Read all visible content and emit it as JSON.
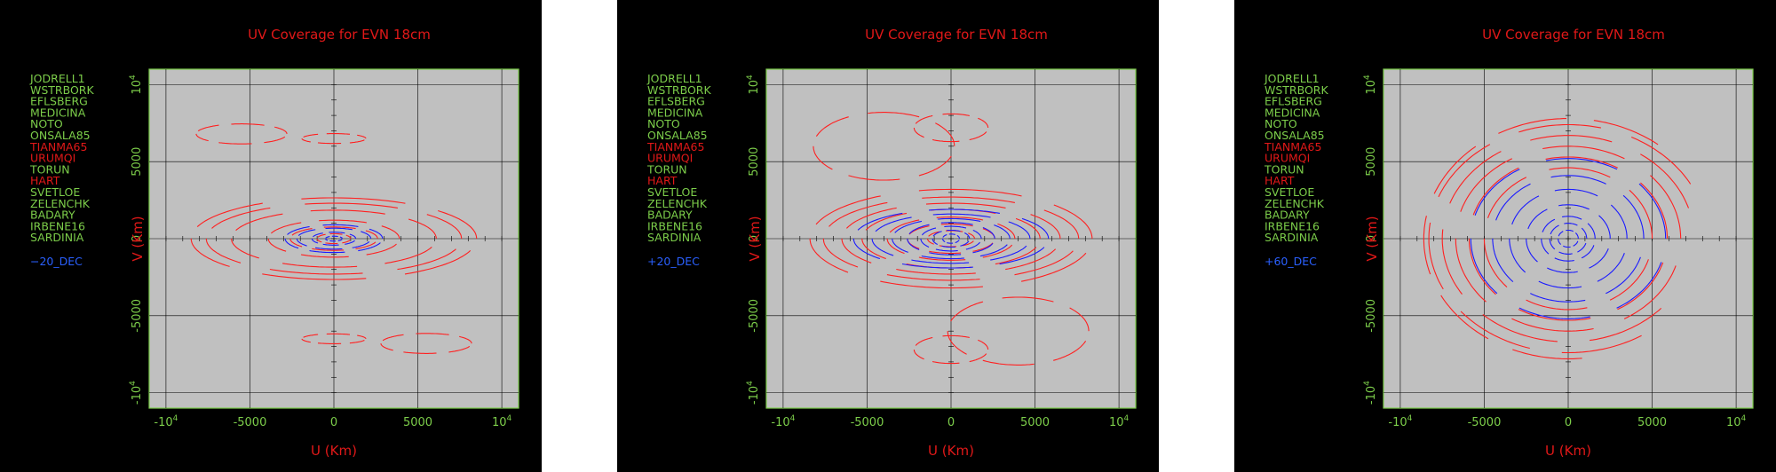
{
  "colors": {
    "background": "#000000",
    "plot_bg": "#c0c0c0",
    "frame": "#7ccd4a",
    "title": "#e01818",
    "axis_label": "#e01818",
    "tick_label": "#7ccd4a",
    "station_green": "#7ccd4a",
    "station_red": "#e01818",
    "series_red": "#ff2020",
    "series_blue": "#1a1aff",
    "dec_label": "#2a60ff"
  },
  "panels": [
    {
      "title": "UV Coverage for EVN 18cm",
      "dec_label": "−20_DEC",
      "xlabel": "U (Km)",
      "ylabel": "V (Km)",
      "stations": [
        {
          "name": "JODRELL1",
          "color": "green"
        },
        {
          "name": "WSTRBORK",
          "color": "green"
        },
        {
          "name": "EFLSBERG",
          "color": "green"
        },
        {
          "name": "MEDICINA",
          "color": "green"
        },
        {
          "name": "NOTO",
          "color": "green"
        },
        {
          "name": "ONSALA85",
          "color": "green"
        },
        {
          "name": "TIANMA65",
          "color": "red"
        },
        {
          "name": "URUMQI",
          "color": "red"
        },
        {
          "name": "TORUN",
          "color": "green"
        },
        {
          "name": "HART",
          "color": "red"
        },
        {
          "name": "SVETLOE",
          "color": "green"
        },
        {
          "name": "ZELENCHK",
          "color": "green"
        },
        {
          "name": "BADARY",
          "color": "green"
        },
        {
          "name": "IRBENE16",
          "color": "green"
        },
        {
          "name": "SARDINIA",
          "color": "green"
        }
      ],
      "x_ticks": [
        {
          "v": -10000,
          "label": "-10",
          "sup": "4"
        },
        {
          "v": -5000,
          "label": "-5000"
        },
        {
          "v": 0,
          "label": "0"
        },
        {
          "v": 5000,
          "label": "5000"
        },
        {
          "v": 10000,
          "label": "10",
          "sup": "4"
        }
      ],
      "y_ticks": [
        {
          "v": -10000,
          "label": "-10",
          "sup": "4"
        },
        {
          "v": -5000,
          "label": "-5000"
        },
        {
          "v": 0,
          "label": "0"
        },
        {
          "v": 5000,
          "label": "5000"
        },
        {
          "v": 10000,
          "label": "10",
          "sup": "4"
        }
      ]
    },
    {
      "title": "UV Coverage for EVN 18cm",
      "dec_label": "+20_DEC",
      "xlabel": "U (Km)",
      "ylabel": "V (Km)",
      "stations": [
        {
          "name": "JODRELL1",
          "color": "green"
        },
        {
          "name": "WSTRBORK",
          "color": "green"
        },
        {
          "name": "EFLSBERG",
          "color": "green"
        },
        {
          "name": "MEDICINA",
          "color": "green"
        },
        {
          "name": "NOTO",
          "color": "green"
        },
        {
          "name": "ONSALA85",
          "color": "green"
        },
        {
          "name": "TIANMA65",
          "color": "red"
        },
        {
          "name": "URUMQI",
          "color": "red"
        },
        {
          "name": "TORUN",
          "color": "green"
        },
        {
          "name": "HART",
          "color": "red"
        },
        {
          "name": "SVETLOE",
          "color": "green"
        },
        {
          "name": "ZELENCHK",
          "color": "green"
        },
        {
          "name": "BADARY",
          "color": "green"
        },
        {
          "name": "IRBENE16",
          "color": "green"
        },
        {
          "name": "SARDINIA",
          "color": "green"
        }
      ],
      "x_ticks": [
        {
          "v": -10000,
          "label": "-10",
          "sup": "4"
        },
        {
          "v": -5000,
          "label": "-5000"
        },
        {
          "v": 0,
          "label": "0"
        },
        {
          "v": 5000,
          "label": "5000"
        },
        {
          "v": 10000,
          "label": "10",
          "sup": "4"
        }
      ],
      "y_ticks": [
        {
          "v": -10000,
          "label": "-10",
          "sup": "4"
        },
        {
          "v": -5000,
          "label": "-5000"
        },
        {
          "v": 0,
          "label": "0"
        },
        {
          "v": 5000,
          "label": "5000"
        },
        {
          "v": 10000,
          "label": "10",
          "sup": "4"
        }
      ]
    },
    {
      "title": "UV Coverage for EVN 18cm",
      "dec_label": "+60_DEC",
      "xlabel": "U (Km)",
      "ylabel": "V (Km)",
      "stations": [
        {
          "name": "JODRELL1",
          "color": "green"
        },
        {
          "name": "WSTRBORK",
          "color": "green"
        },
        {
          "name": "EFLSBERG",
          "color": "green"
        },
        {
          "name": "MEDICINA",
          "color": "green"
        },
        {
          "name": "NOTO",
          "color": "green"
        },
        {
          "name": "ONSALA85",
          "color": "green"
        },
        {
          "name": "TIANMA65",
          "color": "red"
        },
        {
          "name": "URUMQI",
          "color": "red"
        },
        {
          "name": "TORUN",
          "color": "green"
        },
        {
          "name": "HART",
          "color": "red"
        },
        {
          "name": "SVETLOE",
          "color": "green"
        },
        {
          "name": "ZELENCHK",
          "color": "green"
        },
        {
          "name": "BADARY",
          "color": "green"
        },
        {
          "name": "IRBENE16",
          "color": "green"
        },
        {
          "name": "SARDINIA",
          "color": "green"
        }
      ],
      "x_ticks": [
        {
          "v": -10000,
          "label": "-10",
          "sup": "4"
        },
        {
          "v": -5000,
          "label": "-5000"
        },
        {
          "v": 0,
          "label": "0"
        },
        {
          "v": 5000,
          "label": "5000"
        },
        {
          "v": 10000,
          "label": "10",
          "sup": "4"
        }
      ],
      "y_ticks": [
        {
          "v": -10000,
          "label": "-10",
          "sup": "4"
        },
        {
          "v": -5000,
          "label": "-5000"
        },
        {
          "v": 0,
          "label": "0"
        },
        {
          "v": 5000,
          "label": "5000"
        },
        {
          "v": 10000,
          "label": "10",
          "sup": "4"
        }
      ]
    }
  ],
  "chart_data": [
    {
      "type": "scatter",
      "title": "UV Coverage for EVN 18cm",
      "xlabel": "U (Km)",
      "ylabel": "V (Km)",
      "xlim": [
        -11000,
        11000
      ],
      "ylim": [
        -11000,
        11000
      ],
      "grid": true,
      "declination": -20,
      "series": [
        {
          "color": "red",
          "tracks": [
            {
              "cx": 0,
              "cy": 0,
              "a": 1000,
              "b": 320,
              "t0": 0,
              "t1": 6.28
            },
            {
              "cx": 0,
              "cy": 0,
              "a": 2600,
              "b": 760,
              "t0": 0,
              "t1": 6.28
            },
            {
              "cx": 0,
              "cy": 0,
              "a": 3900,
              "b": 1200,
              "t0": 0,
              "t1": 6.28
            },
            {
              "cx": 0,
              "cy": 0,
              "a": 6100,
              "b": 1850,
              "t0": 0,
              "t1": 6.28
            },
            {
              "cx": 0,
              "cy": 0,
              "a": 7600,
              "b": 2300,
              "t0": 0,
              "t1": 6.28
            },
            {
              "cx": 0,
              "cy": 0,
              "a": 8500,
              "b": 2650,
              "t0": 0,
              "t1": 6.28
            },
            {
              "cx": 0,
              "cy": 6500,
              "a": 1900,
              "b": 320,
              "t0": 0,
              "t1": 6.28
            },
            {
              "cx": -5500,
              "cy": 6800,
              "a": 2700,
              "b": 650,
              "t0": 0,
              "t1": 6.28
            },
            {
              "cx": 0,
              "cy": -6500,
              "a": 1900,
              "b": 320,
              "t0": 0,
              "t1": 6.28
            },
            {
              "cx": 5500,
              "cy": -6800,
              "a": 2700,
              "b": 650,
              "t0": 0,
              "t1": 6.28
            }
          ]
        },
        {
          "color": "blue",
          "tracks": [
            {
              "cx": 0,
              "cy": 0,
              "a": 500,
              "b": 160,
              "t0": 0,
              "t1": 6.28
            },
            {
              "cx": 0,
              "cy": 0,
              "a": 1300,
              "b": 420,
              "t0": 0,
              "t1": 6.28
            },
            {
              "cx": 0,
              "cy": 0,
              "a": 2200,
              "b": 680,
              "t0": 0,
              "t1": 6.28
            },
            {
              "cx": 0,
              "cy": 0,
              "a": 2900,
              "b": 900,
              "t0": 0,
              "t1": 6.28
            }
          ]
        }
      ]
    },
    {
      "type": "scatter",
      "title": "UV Coverage for EVN 18cm",
      "xlabel": "U (Km)",
      "ylabel": "V (Km)",
      "xlim": [
        -11000,
        11000
      ],
      "ylim": [
        -11000,
        11000
      ],
      "grid": true,
      "declination": 20,
      "series": [
        {
          "color": "red",
          "tracks": [
            {
              "cx": 0,
              "cy": 0,
              "a": 1400,
              "b": 520,
              "t0": 0,
              "t1": 6.28
            },
            {
              "cx": 0,
              "cy": 0,
              "a": 2600,
              "b": 950,
              "t0": 0,
              "t1": 6.28
            },
            {
              "cx": 0,
              "cy": 0,
              "a": 3800,
              "b": 1400,
              "t0": 0,
              "t1": 6.28
            },
            {
              "cx": 0,
              "cy": 0,
              "a": 5300,
              "b": 1900,
              "t0": 0,
              "t1": 6.28
            },
            {
              "cx": 0,
              "cy": 0,
              "a": 6500,
              "b": 2300,
              "t0": 0,
              "t1": 6.28
            },
            {
              "cx": 0,
              "cy": 0,
              "a": 7600,
              "b": 2700,
              "t0": 0,
              "t1": 6.28
            },
            {
              "cx": 0,
              "cy": 0,
              "a": 8400,
              "b": 3200,
              "t0": 0,
              "t1": 6.28
            },
            {
              "cx": 0,
              "cy": 7200,
              "a": 2200,
              "b": 900,
              "t0": 0,
              "t1": 6.28
            },
            {
              "cx": -4000,
              "cy": 6000,
              "a": 4200,
              "b": 2200,
              "t0": 0,
              "t1": 6.28
            },
            {
              "cx": 0,
              "cy": -7200,
              "a": 2200,
              "b": 900,
              "t0": 0,
              "t1": 6.28
            },
            {
              "cx": 4000,
              "cy": -6000,
              "a": 4200,
              "b": 2200,
              "t0": 0,
              "t1": 6.28
            }
          ]
        },
        {
          "color": "blue",
          "tracks": [
            {
              "cx": 0,
              "cy": 0,
              "a": 500,
              "b": 300,
              "t0": 0,
              "t1": 6.28
            },
            {
              "cx": 0,
              "cy": 0,
              "a": 1100,
              "b": 550,
              "t0": 0,
              "t1": 6.28
            },
            {
              "cx": 0,
              "cy": 0,
              "a": 1800,
              "b": 800,
              "t0": 0,
              "t1": 6.28
            },
            {
              "cx": 0,
              "cy": 0,
              "a": 2600,
              "b": 1050,
              "t0": 0,
              "t1": 6.28
            },
            {
              "cx": 0,
              "cy": 0,
              "a": 3500,
              "b": 1300,
              "t0": 0,
              "t1": 6.28
            },
            {
              "cx": 0,
              "cy": 0,
              "a": 4700,
              "b": 1600,
              "t0": 0,
              "t1": 6.28
            },
            {
              "cx": 0,
              "cy": 0,
              "a": 5800,
              "b": 1900,
              "t0": 0,
              "t1": 6.28
            }
          ]
        }
      ]
    },
    {
      "type": "scatter",
      "title": "UV Coverage for EVN 18cm",
      "xlabel": "U (Km)",
      "ylabel": "V (Km)",
      "xlim": [
        -11000,
        11000
      ],
      "ylim": [
        -11000,
        11000
      ],
      "grid": true,
      "declination": 60,
      "series": [
        {
          "color": "red",
          "tracks": [
            {
              "cx": 0,
              "cy": 0,
              "a": 5000,
              "b": 4600,
              "t0": 0,
              "t1": 6.28
            },
            {
              "cx": 0,
              "cy": 0,
              "a": 5900,
              "b": 5300,
              "t0": 0,
              "t1": 6.28
            },
            {
              "cx": 0,
              "cy": 0,
              "a": 6700,
              "b": 6000,
              "t0": 0,
              "t1": 6.28
            },
            {
              "cx": 0,
              "cy": 0,
              "a": 7500,
              "b": 6700,
              "t0": 0.3,
              "t1": 5.8
            },
            {
              "cx": 0,
              "cy": 0,
              "a": 8300,
              "b": 7400,
              "t0": 0.5,
              "t1": 5.5
            },
            {
              "cx": 0,
              "cy": 0,
              "a": 8600,
              "b": 7800,
              "t0": 0.9,
              "t1": 5.0
            }
          ]
        },
        {
          "color": "blue",
          "tracks": [
            {
              "cx": 0,
              "cy": 0,
              "a": 600,
              "b": 550,
              "t0": 0,
              "t1": 6.28
            },
            {
              "cx": 0,
              "cy": 0,
              "a": 1100,
              "b": 1000,
              "t0": 0,
              "t1": 6.28
            },
            {
              "cx": 0,
              "cy": 0,
              "a": 1600,
              "b": 1450,
              "t0": 0,
              "t1": 6.28
            },
            {
              "cx": 0,
              "cy": 0,
              "a": 2500,
              "b": 2200,
              "t0": 0,
              "t1": 6.28
            },
            {
              "cx": 0,
              "cy": 0,
              "a": 3500,
              "b": 3200,
              "t0": 0,
              "t1": 6.28
            },
            {
              "cx": 0,
              "cy": 0,
              "a": 4500,
              "b": 4100,
              "t0": 0,
              "t1": 6.28
            },
            {
              "cx": 0,
              "cy": 0,
              "a": 5800,
              "b": 5200,
              "t0": 0,
              "t1": 6.28
            }
          ]
        }
      ]
    }
  ]
}
